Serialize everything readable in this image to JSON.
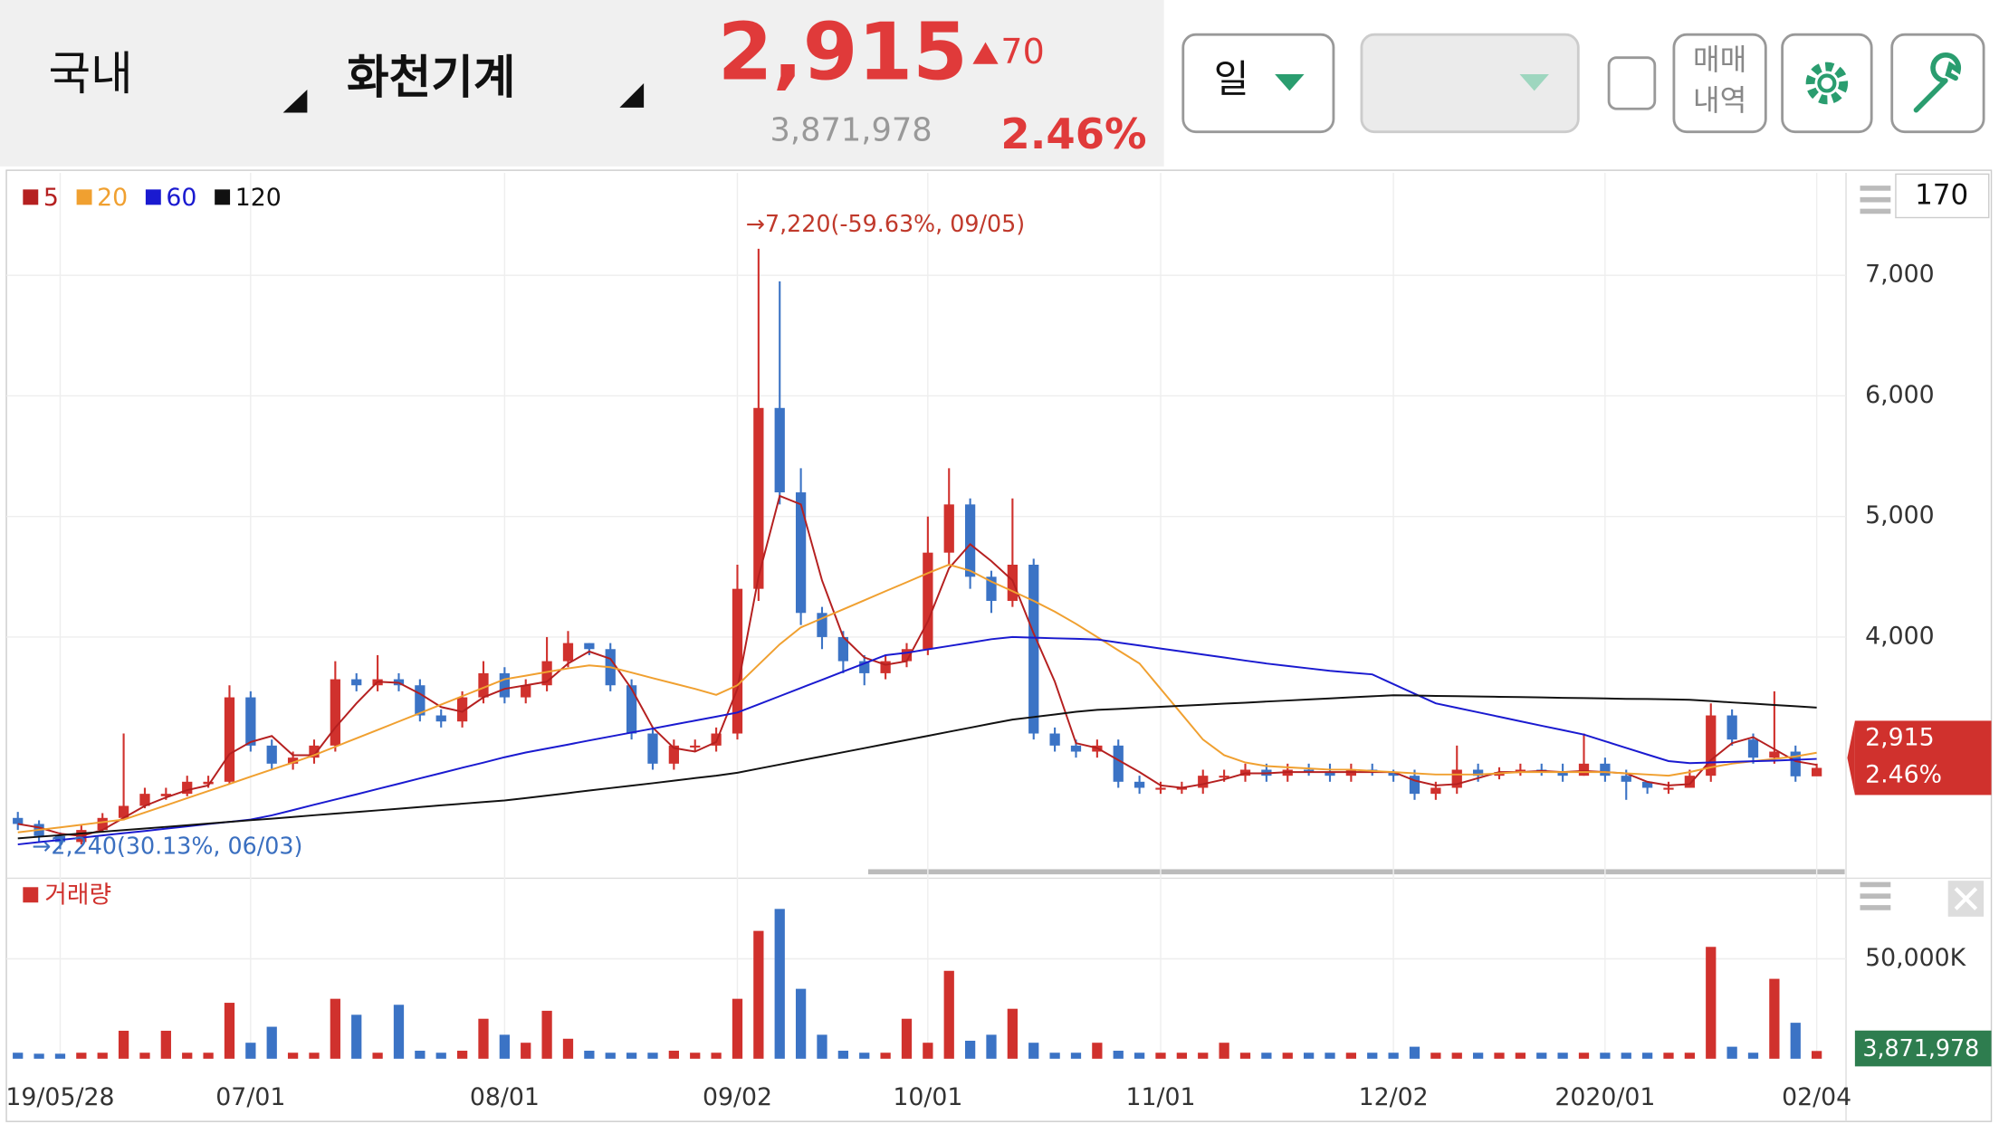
{
  "header": {
    "market": "국내",
    "stock": "화천기계",
    "price": "2,915",
    "change": 70,
    "volume": "3,871,978",
    "change_pct": "2.46%"
  },
  "toolbar": {
    "period": "일",
    "trade_history": [
      "매매",
      "내역"
    ],
    "count": "170"
  },
  "chart_data": {
    "type": "candlestick",
    "annotations": [
      "→7,220(-59.63%, 09/05)",
      "→2,240(30.13%, 06/03)"
    ],
    "categories": [
      null,
      null,
      "19/05/28",
      null,
      null,
      null,
      null,
      null,
      null,
      null,
      null,
      "07/01",
      null,
      null,
      null,
      null,
      null,
      null,
      null,
      null,
      null,
      null,
      null,
      "08/01",
      null,
      null,
      null,
      null,
      null,
      null,
      null,
      null,
      null,
      null,
      "09/02",
      null,
      null,
      null,
      null,
      null,
      null,
      null,
      null,
      "10/01",
      null,
      null,
      null,
      null,
      null,
      null,
      null,
      null,
      null,
      null,
      "11/01",
      null,
      null,
      null,
      null,
      null,
      null,
      null,
      null,
      null,
      null,
      "12/02",
      null,
      null,
      null,
      null,
      null,
      null,
      null,
      null,
      null,
      "2020/01",
      null,
      null,
      null,
      null,
      null,
      null,
      null,
      null,
      null,
      "02/04"
    ],
    "open": [
      2500,
      2450,
      2350,
      2300,
      2400,
      2500,
      2600,
      2680,
      2700,
      2780,
      2800,
      3500,
      3100,
      2950,
      3000,
      3100,
      3650,
      3600,
      3650,
      3600,
      3350,
      3300,
      3500,
      3700,
      3500,
      3600,
      3800,
      3950,
      3900,
      3600,
      3200,
      2950,
      3100,
      3100,
      3200,
      4400,
      5900,
      5200,
      4200,
      4000,
      3800,
      3700,
      3800,
      3900,
      4700,
      5100,
      4500,
      4300,
      4600,
      3200,
      3100,
      3050,
      3100,
      2800,
      2750,
      2750,
      2750,
      2850,
      2850,
      2900,
      2850,
      2900,
      2880,
      2850,
      2900,
      2880,
      2850,
      2700,
      2750,
      2900,
      2850,
      2880,
      2900,
      2880,
      2850,
      2950,
      2850,
      2800,
      2750,
      2750,
      2850,
      3350,
      3150,
      3000,
      3050,
      2845
    ],
    "high": [
      2550,
      2480,
      2380,
      2440,
      2540,
      3200,
      2750,
      2750,
      2850,
      2850,
      3600,
      3550,
      3150,
      3050,
      3150,
      3800,
      3700,
      3850,
      3700,
      3650,
      3400,
      3550,
      3800,
      3750,
      3650,
      4000,
      4050,
      3950,
      3950,
      3650,
      3250,
      3150,
      3150,
      3250,
      4600,
      7220,
      6950,
      5400,
      4250,
      4050,
      3850,
      3850,
      3950,
      5000,
      5400,
      5150,
      4550,
      5150,
      4650,
      3250,
      3150,
      3150,
      3150,
      2850,
      2800,
      2800,
      2900,
      2900,
      2950,
      2950,
      2950,
      2950,
      2950,
      2950,
      2950,
      2900,
      2900,
      2800,
      3100,
      2950,
      2920,
      2950,
      2950,
      2950,
      3200,
      3000,
      2900,
      2800,
      2800,
      2900,
      3450,
      3400,
      3200,
      3550,
      3100,
      2950
    ],
    "low": [
      2400,
      2300,
      2240,
      2280,
      2380,
      2480,
      2580,
      2650,
      2680,
      2750,
      2780,
      3050,
      2900,
      2900,
      2950,
      3050,
      3550,
      3550,
      3550,
      3300,
      3250,
      3250,
      3450,
      3450,
      3450,
      3550,
      3750,
      3850,
      3550,
      3150,
      2900,
      2900,
      3050,
      3050,
      3150,
      4300,
      5100,
      4100,
      3900,
      3700,
      3600,
      3650,
      3750,
      3850,
      4600,
      4400,
      4200,
      4250,
      3150,
      3050,
      3000,
      3000,
      2750,
      2700,
      2700,
      2700,
      2700,
      2800,
      2800,
      2800,
      2800,
      2850,
      2800,
      2800,
      2850,
      2800,
      2650,
      2650,
      2700,
      2800,
      2820,
      2850,
      2850,
      2800,
      2850,
      2800,
      2650,
      2700,
      2700,
      2750,
      2800,
      3100,
      2950,
      2950,
      2800,
      2850
    ],
    "close": [
      2450,
      2350,
      2300,
      2400,
      2500,
      2600,
      2700,
      2700,
      2800,
      2800,
      3500,
      3100,
      2950,
      3000,
      3100,
      3650,
      3600,
      3650,
      3600,
      3350,
      3300,
      3500,
      3700,
      3500,
      3600,
      3800,
      3950,
      3900,
      3600,
      3200,
      2950,
      3100,
      3100,
      3200,
      4400,
      5900,
      5200,
      4200,
      4000,
      3800,
      3700,
      3800,
      3900,
      4700,
      5100,
      4500,
      4300,
      4600,
      3200,
      3100,
      3050,
      3100,
      2800,
      2750,
      2750,
      2750,
      2850,
      2850,
      2900,
      2850,
      2900,
      2880,
      2850,
      2900,
      2880,
      2850,
      2700,
      2750,
      2900,
      2850,
      2880,
      2900,
      2880,
      2850,
      2950,
      2850,
      2800,
      2750,
      2750,
      2850,
      3350,
      3150,
      3000,
      3050,
      2845,
      2915
    ],
    "ylim": [
      2085,
      7850
    ],
    "yticks": [
      {
        "value": 4000,
        "label": "4,000"
      },
      {
        "value": 5000,
        "label": "5,000"
      },
      {
        "value": 6000,
        "label": "6,000"
      },
      {
        "value": 7000,
        "label": "7,000"
      }
    ],
    "up_color": "#d0312d",
    "down_color": "#3b73c5",
    "series": [
      {
        "name": "5",
        "color": "#b52020",
        "values": [
          2450,
          2420,
          2370,
          2350,
          2400,
          2500,
          2600,
          2670,
          2730,
          2770,
          3030,
          3130,
          3180,
          3020,
          3020,
          3250,
          3450,
          3630,
          3620,
          3530,
          3420,
          3380,
          3500,
          3570,
          3600,
          3630,
          3780,
          3880,
          3820,
          3570,
          3250,
          3080,
          3050,
          3130,
          3570,
          4500,
          5170,
          5100,
          4470,
          4000,
          3830,
          3770,
          3800,
          4130,
          4570,
          4770,
          4630,
          4470,
          4030,
          3630,
          3120,
          3080,
          2980,
          2880,
          2770,
          2750,
          2780,
          2820,
          2870,
          2870,
          2880,
          2880,
          2880,
          2880,
          2880,
          2880,
          2810,
          2770,
          2780,
          2830,
          2880,
          2880,
          2890,
          2880,
          2890,
          2880,
          2870,
          2800,
          2770,
          2780,
          2980,
          3120,
          3170,
          3070,
          2970,
          2940
        ]
      },
      {
        "name": "20",
        "color": "#f0a030",
        "values": [
          2380,
          2401,
          2422,
          2443,
          2465,
          2486,
          2545,
          2604,
          2664,
          2723,
          2782,
          2842,
          2901,
          2960,
          3020,
          3090,
          3160,
          3230,
          3300,
          3370,
          3440,
          3510,
          3580,
          3650,
          3680,
          3710,
          3740,
          3765,
          3750,
          3705,
          3660,
          3615,
          3570,
          3520,
          3600,
          3770,
          3940,
          4080,
          4155,
          4230,
          4305,
          4380,
          4455,
          4530,
          4600,
          4550,
          4460,
          4380,
          4300,
          4210,
          4110,
          4000,
          3890,
          3780,
          3570,
          3360,
          3150,
          3020,
          2960,
          2930,
          2920,
          2910,
          2900,
          2900,
          2890,
          2880,
          2870,
          2860,
          2860,
          2860,
          2870,
          2880,
          2880,
          2880,
          2880,
          2880,
          2870,
          2860,
          2850,
          2880,
          2920,
          2950,
          2970,
          2990,
          3010,
          3040
        ]
      },
      {
        "name": "60",
        "color": "#1a1ad0",
        "values": [
          2280,
          2299,
          2318,
          2336,
          2355,
          2374,
          2392,
          2411,
          2430,
          2449,
          2467,
          2486,
          2521,
          2565,
          2609,
          2653,
          2696,
          2740,
          2784,
          2828,
          2872,
          2916,
          2959,
          3003,
          3043,
          3076,
          3109,
          3142,
          3175,
          3208,
          3241,
          3274,
          3307,
          3340,
          3374,
          3442,
          3510,
          3578,
          3646,
          3714,
          3782,
          3850,
          3870,
          3898,
          3926,
          3954,
          3982,
          4000,
          3995,
          3990,
          3985,
          3980,
          3955,
          3930,
          3905,
          3880,
          3855,
          3830,
          3805,
          3780,
          3760,
          3740,
          3720,
          3705,
          3690,
          3610,
          3530,
          3450,
          3413,
          3376,
          3339,
          3302,
          3265,
          3228,
          3191,
          3136,
          3081,
          3026,
          2971,
          2955,
          2960,
          2965,
          2970,
          2975,
          2982,
          2990
        ]
      },
      {
        "name": "120",
        "color": "#111111",
        "values": [
          2330,
          2344,
          2357,
          2371,
          2385,
          2399,
          2412,
          2426,
          2440,
          2453,
          2467,
          2481,
          2494,
          2508,
          2522,
          2536,
          2549,
          2563,
          2577,
          2590,
          2604,
          2618,
          2632,
          2645,
          2665,
          2685,
          2706,
          2727,
          2747,
          2768,
          2788,
          2809,
          2830,
          2850,
          2875,
          2909,
          2943,
          2977,
          3011,
          3045,
          3079,
          3113,
          3147,
          3181,
          3215,
          3249,
          3283,
          3315,
          3337,
          3358,
          3380,
          3396,
          3404,
          3413,
          3422,
          3430,
          3439,
          3448,
          3456,
          3465,
          3474,
          3482,
          3491,
          3500,
          3509,
          3517,
          3515,
          3512,
          3510,
          3507,
          3504,
          3502,
          3499,
          3496,
          3494,
          3491,
          3488,
          3486,
          3483,
          3480,
          3469,
          3458,
          3448,
          3437,
          3426,
          3415
        ]
      }
    ],
    "volume": {
      "name": "거래량",
      "ylim": [
        0,
        89100
      ],
      "yticks": [
        {
          "value": 50000,
          "label": "50,000K"
        }
      ],
      "values": [
        3000,
        2500,
        2500,
        3000,
        3000,
        14000,
        3000,
        14000,
        3000,
        3000,
        28000,
        8000,
        16000,
        3000,
        3000,
        30000,
        22000,
        3000,
        27000,
        4000,
        3000,
        4000,
        20000,
        12000,
        8000,
        24000,
        10000,
        4000,
        3000,
        3000,
        3000,
        4000,
        3000,
        3000,
        30000,
        64000,
        75000,
        35000,
        12000,
        4000,
        3000,
        3000,
        20000,
        8000,
        44000,
        9000,
        12000,
        25000,
        8000,
        3000,
        3000,
        8000,
        4000,
        3000,
        3000,
        3000,
        3000,
        8000,
        3000,
        3000,
        3000,
        3000,
        3000,
        3000,
        3000,
        3000,
        6000,
        3000,
        3000,
        3000,
        3000,
        3000,
        3000,
        3000,
        3000,
        3000,
        3000,
        3000,
        3000,
        3000,
        56000,
        6000,
        3000,
        40000,
        18000,
        3871.978
      ]
    }
  }
}
